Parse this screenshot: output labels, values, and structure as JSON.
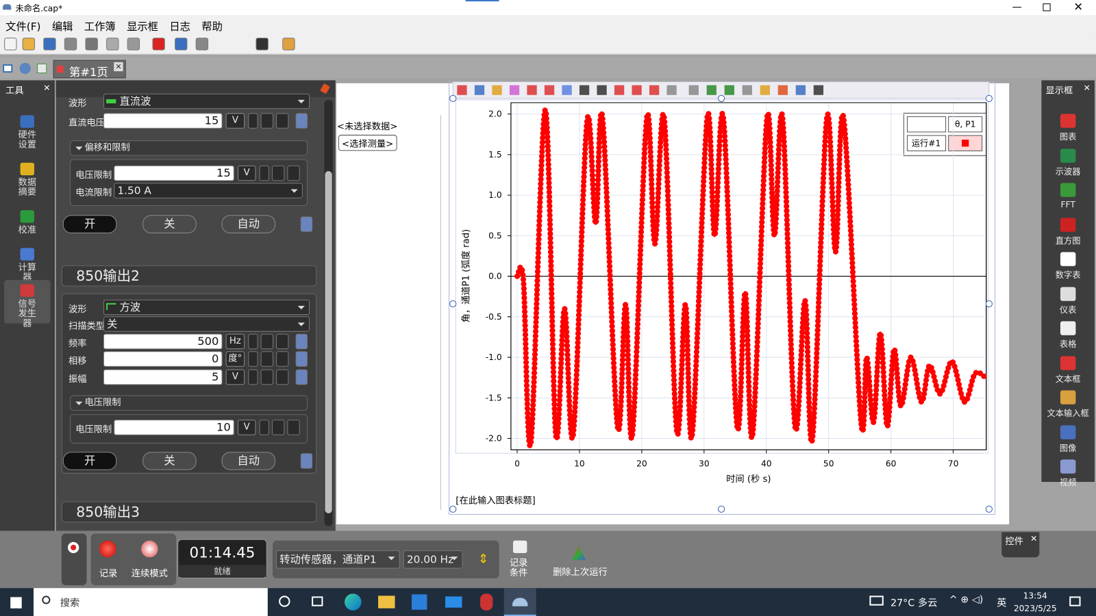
{
  "window": {
    "title": "未命名.cap*"
  },
  "menu": [
    "文件(F)",
    "编辑",
    "工作簿",
    "显示框",
    "日志",
    "帮助"
  ],
  "tab": "第#1页",
  "tools": {
    "title": "工具",
    "items": [
      "硬件设置",
      "数据摘要",
      "校准",
      "计算器",
      "信号发生器"
    ]
  },
  "signal_generator": {
    "output1": {
      "waveform_label": "波形",
      "waveform": "直流波",
      "dc_voltage_label": "直流电压",
      "dc_voltage": 15,
      "dc_voltage_unit": "V",
      "limits_section": "偏移和限制",
      "voltage_limit_label": "电压限制",
      "voltage_limit": 15,
      "voltage_limit_unit": "V",
      "current_limit_label": "电流限制",
      "current_limit": "1.50 A",
      "on": "开",
      "off": "关",
      "auto": "自动"
    },
    "output2": {
      "title": "850输出2",
      "waveform_label": "波形",
      "waveform": "方波",
      "sweep_label": "扫描类型",
      "sweep": "关",
      "frequency_label": "频率",
      "frequency": 500,
      "frequency_unit": "Hz",
      "phase_label": "相移",
      "phase": 0,
      "phase_unit": "度°",
      "amplitude_label": "振幅",
      "amplitude": 5,
      "amplitude_unit": "V",
      "limits_section": "电压限制",
      "voltage_limit_label": "电压限制",
      "voltage_limit": 10,
      "voltage_limit_unit": "V",
      "on": "开",
      "off": "关",
      "auto": "自动"
    },
    "output3": {
      "title": "850输出3"
    }
  },
  "table": {
    "no_data": "<未选择数据>",
    "select_measurement": "<选择测量>"
  },
  "graph": {
    "type": "scatter",
    "caption": "[在此输入图表标题]",
    "x_label": "时间 (秒 s)",
    "y_label": "角，通道P1 (弧度 rad)",
    "legend_header": "θ, P1",
    "x": [
      0,
      1,
      2.2,
      4.5,
      6.2,
      7.6,
      9.0,
      11.2,
      12.6,
      13.7,
      16.1,
      17.4,
      18.5,
      20.8,
      22.1,
      23.6,
      25.6,
      27.0,
      28.1,
      30.5,
      31.7,
      33.1,
      35.3,
      36.6,
      37.8,
      40.1,
      41.3,
      42.6,
      44.6,
      46.2,
      47.4,
      49.7,
      51.1,
      52.4,
      55.2,
      56.1,
      57.2,
      58.3,
      59.4,
      60.5,
      61.6,
      63.2,
      64.9,
      66.2,
      67.9,
      69.8,
      71.8,
      73.5,
      75.2
    ],
    "series": [
      {
        "name": "运行#1",
        "color": "#ff0000",
        "values": [
          0,
          -0.05,
          -2.05,
          2.05,
          -1.95,
          -0.4,
          -1.95,
          1.9,
          0.65,
          1.95,
          -1.85,
          -0.35,
          -1.95,
          1.95,
          0.4,
          1.95,
          -1.9,
          -0.35,
          -1.95,
          1.95,
          0.5,
          1.95,
          -1.85,
          -0.2,
          -1.95,
          1.95,
          0.5,
          1.95,
          -1.85,
          -0.3,
          -2.0,
          1.95,
          0.3,
          1.95,
          -1.8,
          -1.0,
          -1.8,
          -0.7,
          -1.85,
          -0.9,
          -1.6,
          -1.0,
          -1.55,
          -1.1,
          -1.45,
          -1.05,
          -1.55,
          -1.2,
          -1.25
        ]
      }
    ],
    "xlim": [
      -1,
      75.3
    ],
    "ylim": [
      -2.14,
      2.14
    ],
    "xticks": [
      0,
      10,
      20,
      30,
      40,
      50,
      60,
      70
    ],
    "yticks": [
      {
        "value": 2,
        "label": "2.0"
      },
      1.5,
      {
        "value": 1,
        "label": "1.0"
      },
      0.5,
      {
        "value": 0,
        "label": "0.0"
      },
      -0.5,
      {
        "value": -1,
        "label": "-1.0"
      },
      -1.5,
      {
        "value": -2,
        "label": "-2.0"
      }
    ],
    "grid": true
  },
  "displays": {
    "title": "显示框",
    "items": [
      "图表",
      "示波器",
      "FFT",
      "直方图",
      "数字表",
      "仪表",
      "表格",
      "文本框",
      "文本输入框",
      "图像",
      "视频"
    ]
  },
  "controls": {
    "record": "记录",
    "mode": "连续模式",
    "time": "01:14.45",
    "status": "就绪",
    "sensor": "转动传感器，通道P1",
    "rate": "20.00 Hz",
    "record_conditions": "记录条件",
    "delete_last_run": "删除上次运行",
    "panel_title": "控件"
  },
  "taskbar": {
    "search": "搜索",
    "weather": "27°C 多云",
    "ime": "英",
    "time": "13:54",
    "date": "2023/5/25"
  }
}
